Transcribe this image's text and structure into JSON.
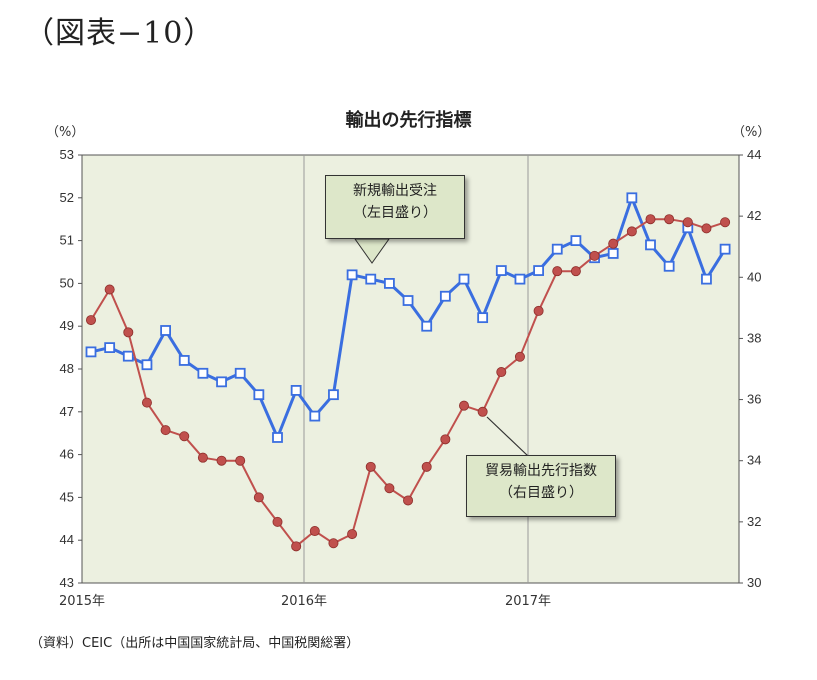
{
  "figure_label": "（図表−10）",
  "source_note": "（資料）CEIC（出所は中国国家統計局、中国税関総署）",
  "colors": {
    "plot_bg": "#ecf0e0",
    "pmi": "#3a6ee0",
    "trade": "#c0504d",
    "callout_bg": "#dde7c9"
  },
  "annotations": {
    "pmi_line1": "新規輸出受注",
    "pmi_line2": "（左目盛り）",
    "trade_line1": "貿易輸出先行指数",
    "trade_line2": "（右目盛り）"
  },
  "chart_data": {
    "type": "line",
    "title": "輸出の先行指標",
    "y_unit_left": "（%）",
    "y_unit_right": "（%）",
    "ylim_left": [
      43,
      53
    ],
    "ylim_right": [
      30,
      44
    ],
    "yticks_left": [
      "53",
      "52",
      "51",
      "50",
      "49",
      "48",
      "47",
      "46",
      "45",
      "44",
      "43"
    ],
    "yticks_right": [
      "44",
      "42",
      "40",
      "38",
      "36",
      "34",
      "32",
      "30"
    ],
    "xtick_labels": [
      "2015年",
      "2016年",
      "2017年"
    ],
    "grid": "vertical lines at year boundaries",
    "series": [
      {
        "name": "新規輸出受注",
        "axis": "left",
        "marker": "open-square",
        "values": [
          48.4,
          48.5,
          48.3,
          48.1,
          48.9,
          48.2,
          47.9,
          47.7,
          47.9,
          47.4,
          46.4,
          47.5,
          46.9,
          47.4,
          50.2,
          50.1,
          50.0,
          49.6,
          49.0,
          49.7,
          50.1,
          49.2,
          50.3,
          50.1,
          50.3,
          50.8,
          51.0,
          50.6,
          50.7,
          52.0,
          50.9,
          50.4,
          51.3,
          50.1,
          50.8
        ]
      },
      {
        "name": "貿易輸出先行指数",
        "axis": "right",
        "marker": "filled-circle",
        "values": [
          38.6,
          39.6,
          38.2,
          35.9,
          35.0,
          34.8,
          34.1,
          34.0,
          34.0,
          32.8,
          32.0,
          31.2,
          31.7,
          31.3,
          31.6,
          33.8,
          33.1,
          32.7,
          33.8,
          34.7,
          35.8,
          35.6,
          36.9,
          37.4,
          38.9,
          40.2,
          40.2,
          40.7,
          41.1,
          41.5,
          41.9,
          41.9,
          41.8,
          41.6,
          41.8
        ]
      }
    ]
  }
}
